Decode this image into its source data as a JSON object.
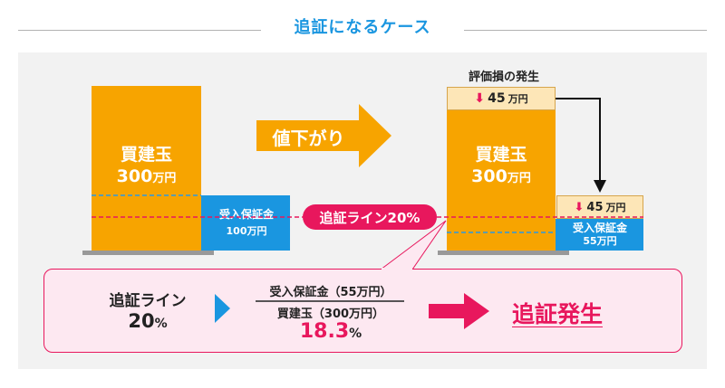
{
  "title": "追証になるケース",
  "before": {
    "bar_name": "買建玉",
    "bar_amount": "300",
    "bar_unit": "万円",
    "margin_name": "受入保証金",
    "margin_amount": "100万円"
  },
  "arrow_label": "値下がり",
  "after": {
    "loss_caption": "評価損の発生",
    "loss_top_amount": "45",
    "loss_top_unit": "万円",
    "bar_name": "買建玉",
    "bar_amount": "300",
    "bar_unit": "万円",
    "loss_margin_amount": "45",
    "loss_margin_unit": "万円",
    "margin_name": "受入保証金",
    "margin_amount": "55万円"
  },
  "line_label": "追証ライン20%",
  "calc": {
    "line_label": "追証ライン",
    "line_value": "20",
    "line_unit": "%",
    "numerator": "受入保証金（55万円）",
    "denominator": "買建玉（300万円）",
    "result_value": "18.3",
    "result_unit": "%",
    "conclusion": "追証発生"
  },
  "colors": {
    "orange": "#f7a400",
    "blue": "#1a96e0",
    "pink": "#e8175d",
    "loss_bg": "#fde6b7"
  }
}
